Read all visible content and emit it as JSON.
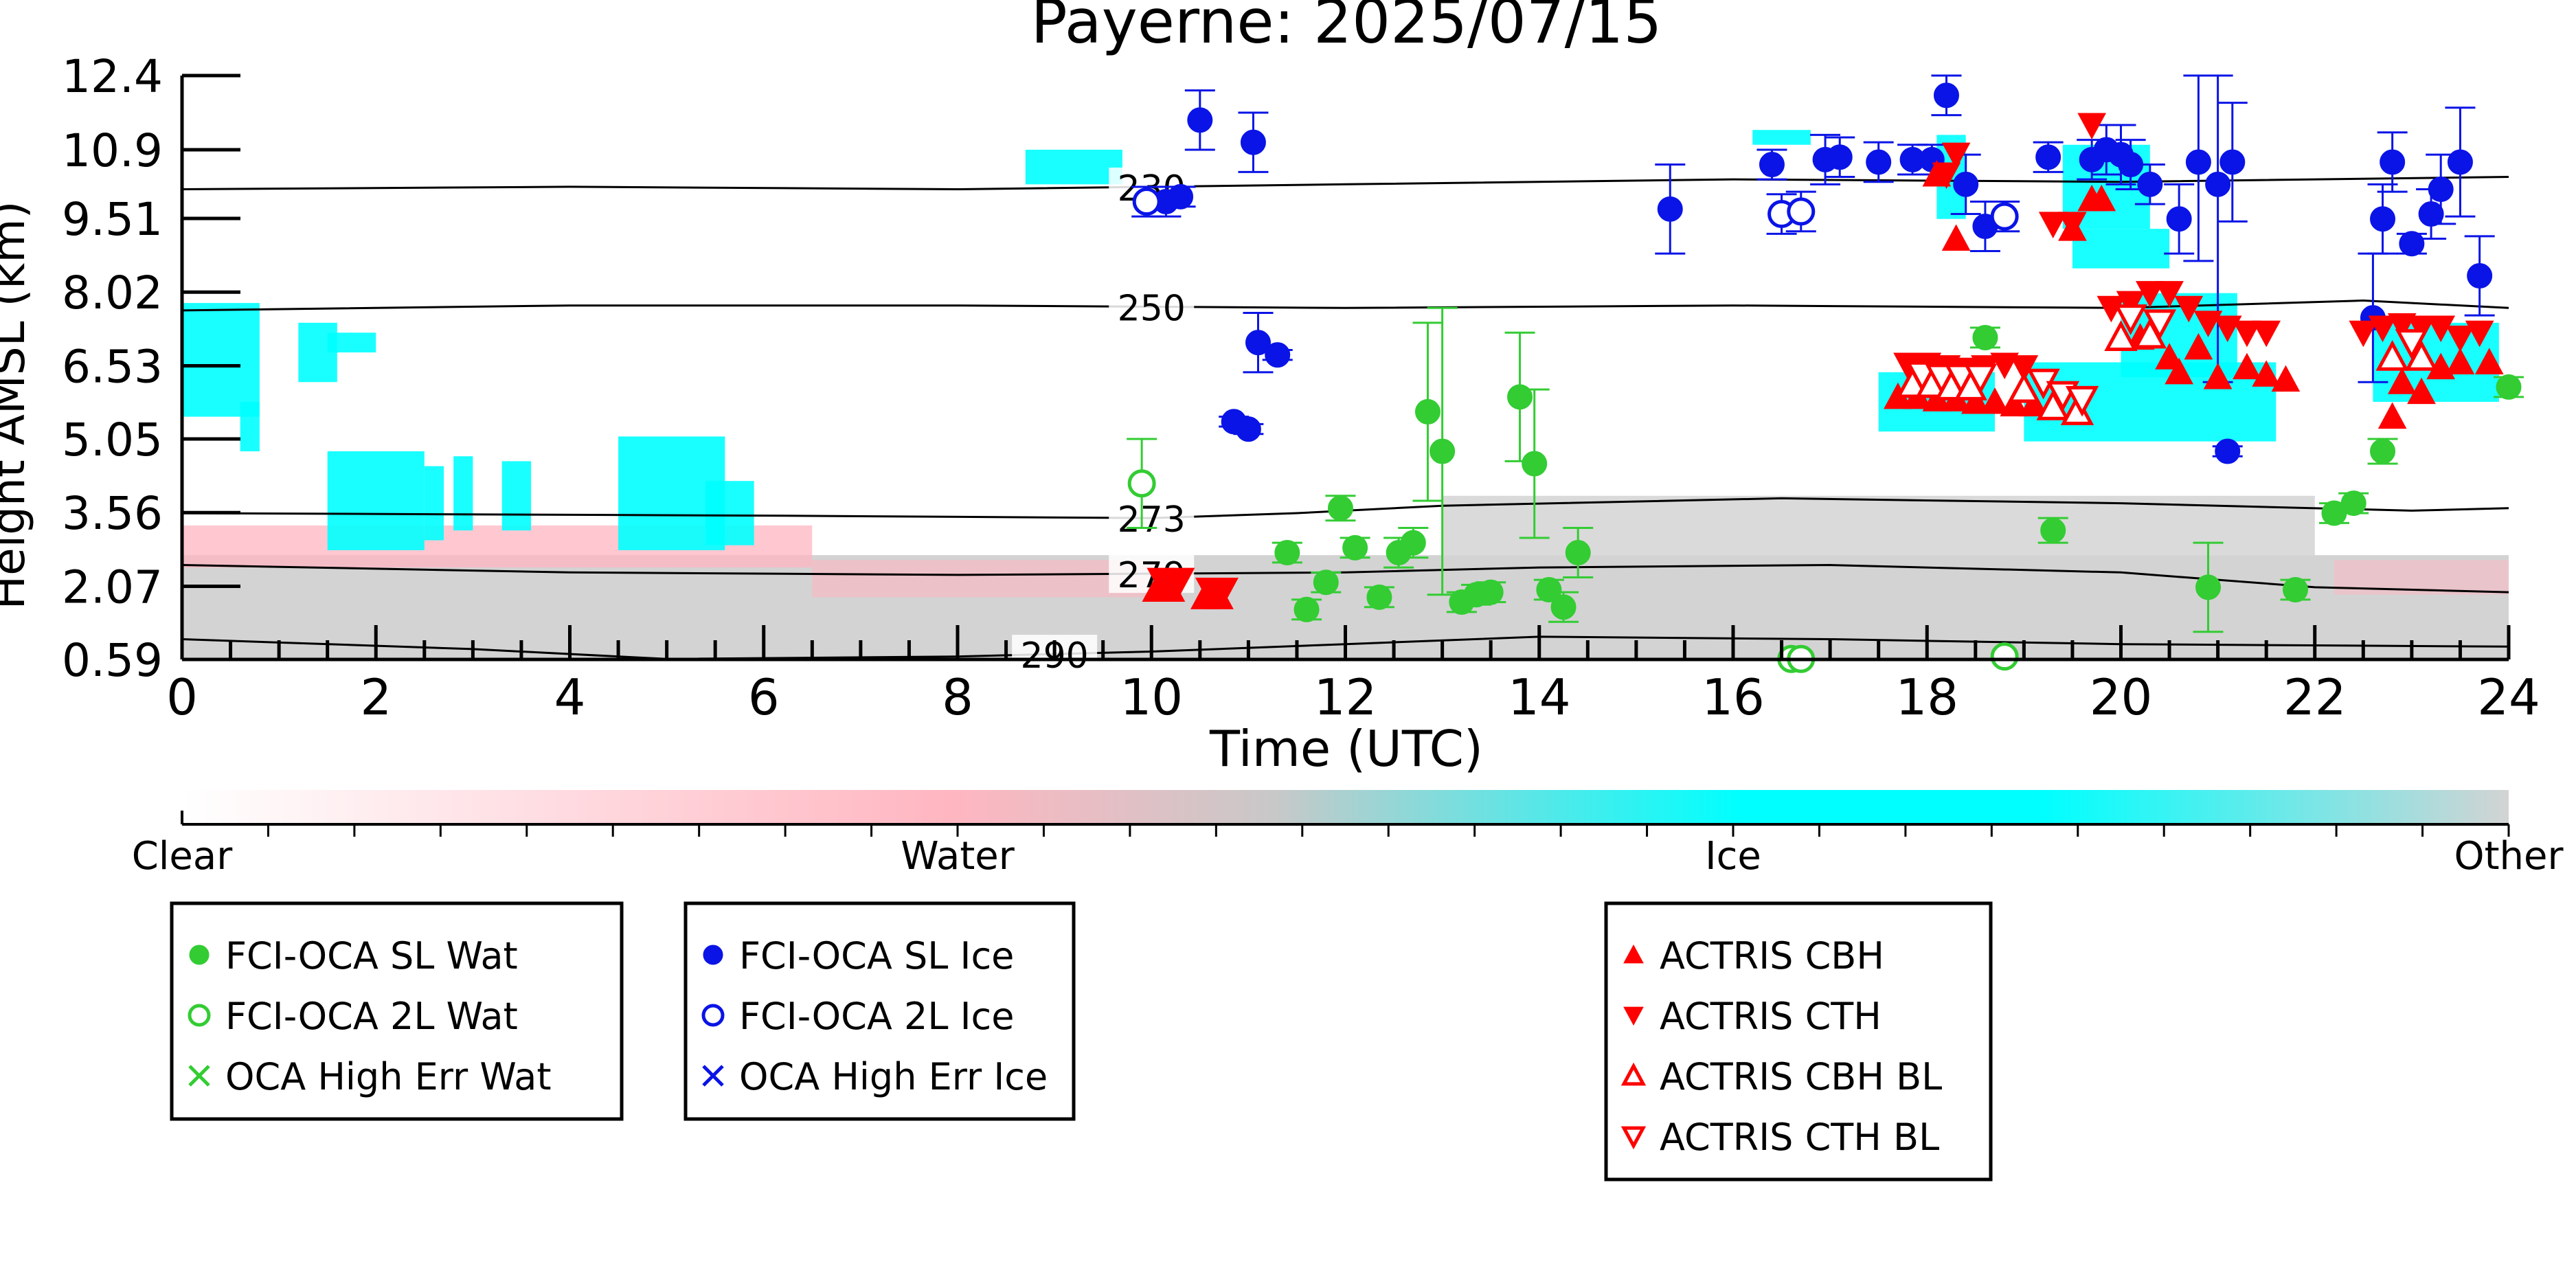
{
  "chart_data": {
    "type": "scatter",
    "title": "Payerne: 2025/07/15",
    "xlabel": "Time (UTC)",
    "ylabel": "Height AMSL (km)",
    "xlim": [
      0,
      24
    ],
    "ylim": [
      0.59,
      12.4
    ],
    "x_ticks": [
      "0",
      "2",
      "4",
      "6",
      "8",
      "10",
      "12",
      "14",
      "16",
      "18",
      "20",
      "22",
      "24"
    ],
    "y_ticks": [
      "0.59",
      "2.07",
      "3.56",
      "5.05",
      "6.53",
      "8.02",
      "9.51",
      "10.9",
      "12.4"
    ],
    "background": "cloud classification curtain (Clear / Water / Ice / Other)",
    "colorbar": {
      "labels": [
        "Clear",
        "Water",
        "Ice",
        "Other"
      ],
      "colors": [
        "#ffffff",
        "#ffb6c1",
        "#00ffff",
        "#d3d3d3"
      ]
    },
    "isotherms": [
      {
        "label": "230",
        "label_x": 10.0,
        "points": [
          [
            0,
            10.1
          ],
          [
            4,
            10.15
          ],
          [
            8,
            10.1
          ],
          [
            12,
            10.2
          ],
          [
            16,
            10.3
          ],
          [
            20,
            10.25
          ],
          [
            24,
            10.35
          ]
        ]
      },
      {
        "label": "250",
        "label_x": 10.0,
        "points": [
          [
            0,
            7.65
          ],
          [
            4,
            7.75
          ],
          [
            8,
            7.75
          ],
          [
            12,
            7.7
          ],
          [
            16,
            7.75
          ],
          [
            20,
            7.7
          ],
          [
            22.5,
            7.85
          ],
          [
            24,
            7.7
          ]
        ]
      },
      {
        "label": "273",
        "label_x": 10.0,
        "points": [
          [
            0,
            3.55
          ],
          [
            6,
            3.5
          ],
          [
            10,
            3.45
          ],
          [
            11.5,
            3.55
          ],
          [
            13,
            3.7
          ],
          [
            16.5,
            3.85
          ],
          [
            20,
            3.75
          ],
          [
            23,
            3.6
          ],
          [
            24,
            3.65
          ]
        ]
      },
      {
        "label": "279",
        "label_x": 10.0,
        "points": [
          [
            0,
            2.5
          ],
          [
            4,
            2.35
          ],
          [
            8,
            2.3
          ],
          [
            12,
            2.35
          ],
          [
            14,
            2.45
          ],
          [
            17,
            2.5
          ],
          [
            20,
            2.35
          ],
          [
            22,
            2.05
          ],
          [
            24,
            1.95
          ]
        ]
      },
      {
        "label": "290",
        "label_x": 9.0,
        "points": [
          [
            0,
            1.0
          ],
          [
            3,
            0.8
          ],
          [
            5,
            0.6
          ],
          [
            8,
            0.65
          ],
          [
            10,
            0.75
          ],
          [
            12,
            0.9
          ],
          [
            14,
            1.05
          ],
          [
            17,
            1.0
          ],
          [
            20,
            0.9
          ],
          [
            24,
            0.85
          ]
        ]
      }
    ],
    "series": [
      {
        "name": "FCI-OCA SL Wat",
        "marker": "filled-circle",
        "color": "#33cc33",
        "points": [
          [
            11.4,
            2.75,
            0.2
          ],
          [
            11.6,
            1.6,
            0.2
          ],
          [
            11.8,
            2.15,
            0.2
          ],
          [
            11.95,
            3.65,
            0.25
          ],
          [
            12.1,
            2.85,
            0.2
          ],
          [
            12.35,
            1.85,
            0.2
          ],
          [
            12.55,
            2.75,
            0.3
          ],
          [
            12.7,
            2.95,
            0.3
          ],
          [
            12.85,
            5.6,
            1.8
          ],
          [
            13.0,
            4.8,
            2.9
          ],
          [
            13.2,
            1.75,
            0.2
          ],
          [
            13.35,
            1.9,
            0.2
          ],
          [
            13.5,
            1.95,
            0.2
          ],
          [
            13.8,
            5.9,
            1.3
          ],
          [
            13.95,
            4.55,
            1.5
          ],
          [
            14.1,
            2.0,
            0.2
          ],
          [
            14.25,
            1.65,
            0.3
          ],
          [
            14.4,
            2.75,
            0.5
          ],
          [
            18.6,
            7.1,
            0.2
          ],
          [
            19.3,
            3.2,
            0.25
          ],
          [
            20.9,
            2.05,
            0.9
          ],
          [
            21.8,
            2.0,
            0.2
          ],
          [
            22.2,
            3.55,
            0.2
          ],
          [
            22.4,
            3.75,
            0.2
          ],
          [
            22.7,
            4.8,
            0.25
          ],
          [
            24.0,
            6.1,
            0.2
          ]
        ]
      },
      {
        "name": "FCI-OCA 2L Wat",
        "marker": "open-circle",
        "color": "#33cc33",
        "points": [
          [
            9.9,
            4.15,
            0.9
          ],
          [
            16.6,
            0.6,
            0
          ],
          [
            16.7,
            0.6,
            0
          ],
          [
            18.8,
            0.65,
            0
          ]
        ]
      },
      {
        "name": "OCA High Err Wat",
        "marker": "cross",
        "color": "#33cc33",
        "points": []
      },
      {
        "name": "FCI-OCA SL Ice",
        "marker": "filled-circle",
        "color": "#0a14e6",
        "points": [
          [
            10.15,
            9.85,
            0.3
          ],
          [
            10.3,
            9.95,
            0.2
          ],
          [
            10.5,
            11.5,
            0.6
          ],
          [
            10.85,
            5.4,
            0.1
          ],
          [
            11.0,
            5.25,
            0.1
          ],
          [
            11.05,
            11.05,
            0.6
          ],
          [
            11.1,
            7.0,
            0.6
          ],
          [
            11.3,
            6.75,
            0.1
          ],
          [
            15.35,
            9.7,
            0.9
          ],
          [
            16.4,
            10.6,
            0.3
          ],
          [
            16.95,
            10.7,
            0.5
          ],
          [
            17.1,
            10.75,
            0.4
          ],
          [
            17.5,
            10.65,
            0.4
          ],
          [
            17.85,
            10.7,
            0.3
          ],
          [
            18.05,
            10.7,
            0.3
          ],
          [
            18.2,
            12.0,
            0.4
          ],
          [
            18.4,
            10.2,
            0.6
          ],
          [
            18.6,
            9.35,
            0.5
          ],
          [
            19.25,
            10.75,
            0.3
          ],
          [
            19.7,
            10.7,
            0.4
          ],
          [
            19.85,
            10.9,
            0.5
          ],
          [
            20.0,
            10.8,
            0.6
          ],
          [
            20.1,
            10.6,
            0.5
          ],
          [
            20.3,
            10.2,
            0.4
          ],
          [
            20.6,
            9.5,
            0.7
          ],
          [
            20.8,
            10.65,
            2.0
          ],
          [
            21.0,
            10.2,
            4.0
          ],
          [
            21.15,
            10.65,
            1.2
          ],
          [
            21.1,
            4.8,
            0.1
          ],
          [
            22.6,
            7.5,
            1.3
          ],
          [
            22.7,
            9.5,
            0.7
          ],
          [
            22.8,
            10.65,
            0.6
          ],
          [
            23.0,
            9.0,
            0.2
          ],
          [
            23.2,
            9.6,
            0.5
          ],
          [
            23.3,
            10.1,
            0.7
          ],
          [
            23.5,
            10.65,
            1.1
          ],
          [
            23.7,
            8.35,
            0.8
          ]
        ]
      },
      {
        "name": "FCI-OCA 2L Ice",
        "marker": "open-circle",
        "color": "#0a14e6",
        "points": [
          [
            9.95,
            9.85,
            0.3
          ],
          [
            16.5,
            9.6,
            0.4
          ],
          [
            16.7,
            9.65,
            0.4
          ],
          [
            18.8,
            9.55,
            0.3
          ]
        ]
      },
      {
        "name": "OCA High Err Ice",
        "marker": "cross",
        "color": "#0a14e6",
        "points": []
      },
      {
        "name": "ACTRIS CBH",
        "marker": "filled-triangle-up",
        "color": "#ff0000",
        "points": [
          [
            10.05,
            2.0
          ],
          [
            10.2,
            2.0
          ],
          [
            10.55,
            1.85
          ],
          [
            10.7,
            1.85
          ],
          [
            17.7,
            5.9
          ],
          [
            17.9,
            5.9
          ],
          [
            18.1,
            5.85
          ],
          [
            18.3,
            5.85
          ],
          [
            18.5,
            5.8
          ],
          [
            18.7,
            5.8
          ],
          [
            18.9,
            5.75
          ],
          [
            19.1,
            5.75
          ],
          [
            18.3,
            9.1
          ],
          [
            18.1,
            10.4
          ],
          [
            19.5,
            9.3
          ],
          [
            19.7,
            9.9
          ],
          [
            20.2,
            7.1
          ],
          [
            20.5,
            6.7
          ],
          [
            20.8,
            6.9
          ],
          [
            21.0,
            6.3
          ],
          [
            21.3,
            6.5
          ],
          [
            21.5,
            6.35
          ],
          [
            21.7,
            6.25
          ],
          [
            22.8,
            5.5
          ],
          [
            22.9,
            6.2
          ],
          [
            23.1,
            6.0
          ],
          [
            23.3,
            6.5
          ],
          [
            23.5,
            6.6
          ],
          [
            23.8,
            6.6
          ],
          [
            19.8,
            9.9
          ],
          [
            20.6,
            6.4
          ]
        ]
      },
      {
        "name": "ACTRIS CTH",
        "marker": "filled-triangle-down",
        "color": "#ff0000",
        "points": [
          [
            10.1,
            2.2
          ],
          [
            10.3,
            2.2
          ],
          [
            10.6,
            2.0
          ],
          [
            10.75,
            2.0
          ],
          [
            17.8,
            6.55
          ],
          [
            18.0,
            6.55
          ],
          [
            18.2,
            6.5
          ],
          [
            18.4,
            6.45
          ],
          [
            18.6,
            6.5
          ],
          [
            18.8,
            6.55
          ],
          [
            19.0,
            6.5
          ],
          [
            18.2,
            10.4
          ],
          [
            18.3,
            10.8
          ],
          [
            19.7,
            11.4
          ],
          [
            19.9,
            7.7
          ],
          [
            20.1,
            7.8
          ],
          [
            20.3,
            8.0
          ],
          [
            20.5,
            8.0
          ],
          [
            20.7,
            7.7
          ],
          [
            20.9,
            7.4
          ],
          [
            21.1,
            7.3
          ],
          [
            21.3,
            7.2
          ],
          [
            21.5,
            7.2
          ],
          [
            22.5,
            7.2
          ],
          [
            22.7,
            7.3
          ],
          [
            22.9,
            7.35
          ],
          [
            23.1,
            7.3
          ],
          [
            23.3,
            7.3
          ],
          [
            23.5,
            7.1
          ],
          [
            23.7,
            7.2
          ],
          [
            19.3,
            9.4
          ],
          [
            19.5,
            9.4
          ]
        ]
      },
      {
        "name": "ACTRIS CBH BL",
        "marker": "open-triangle-up",
        "color": "#ff0000",
        "points": [
          [
            17.85,
            6.15
          ],
          [
            18.05,
            6.15
          ],
          [
            18.25,
            6.1
          ],
          [
            18.45,
            6.1
          ],
          [
            19.0,
            6.05
          ],
          [
            19.3,
            5.7
          ],
          [
            19.55,
            5.6
          ],
          [
            20.0,
            7.1
          ],
          [
            20.3,
            7.15
          ],
          [
            22.8,
            6.7
          ],
          [
            23.1,
            6.7
          ]
        ]
      },
      {
        "name": "ACTRIS CTH BL",
        "marker": "open-triangle-down",
        "color": "#ff0000",
        "points": [
          [
            17.95,
            6.35
          ],
          [
            18.15,
            6.3
          ],
          [
            18.35,
            6.3
          ],
          [
            18.55,
            6.3
          ],
          [
            19.2,
            6.2
          ],
          [
            19.4,
            5.95
          ],
          [
            19.6,
            5.85
          ],
          [
            20.1,
            7.5
          ],
          [
            20.4,
            7.4
          ],
          [
            23.0,
            7.0
          ]
        ]
      }
    ],
    "legend_groups": [
      [
        "FCI-OCA SL Wat",
        "FCI-OCA 2L Wat",
        "OCA High Err Wat"
      ],
      [
        "FCI-OCA SL Ice",
        "FCI-OCA 2L Ice",
        "OCA High Err Ice"
      ],
      [
        "ACTRIS CBH",
        "ACTRIS CTH",
        "ACTRIS CBH BL",
        "ACTRIS CTH BL"
      ]
    ],
    "legend_placement": "bottom",
    "grid": false
  }
}
